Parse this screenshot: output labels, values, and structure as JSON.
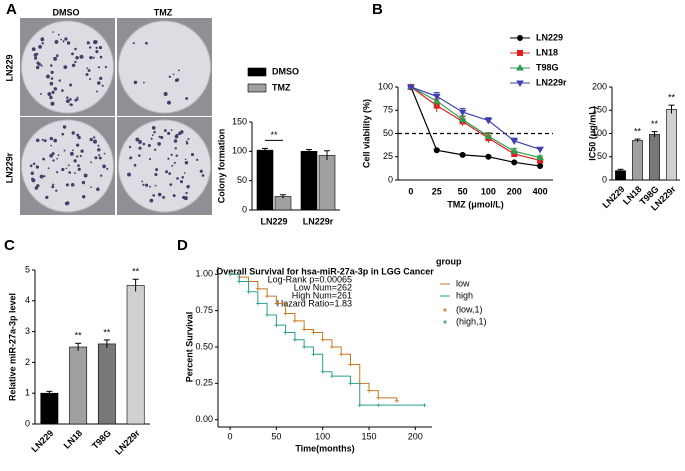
{
  "panel_labels": [
    "A",
    "B",
    "C",
    "D"
  ],
  "plates": {
    "columns": [
      "DMSO",
      "TMZ"
    ],
    "rows": [
      "LN229",
      "LN229r"
    ]
  },
  "chart_data": [
    {
      "type": "bar",
      "y_label": "Colony formation",
      "categories": [
        "LN229",
        "LN229r"
      ],
      "series": [
        {
          "name": "DMSO",
          "color": "#000000",
          "values": [
            102,
            100
          ],
          "errors": [
            3,
            3
          ]
        },
        {
          "name": "TMZ",
          "color": "#a0a0a0",
          "values": [
            23,
            93
          ],
          "errors": [
            3,
            8
          ]
        }
      ],
      "annotation": "**",
      "ylim": [
        0,
        150
      ],
      "yticks": [
        0,
        50,
        100,
        150
      ]
    },
    {
      "type": "line",
      "y_label": "Cell viability (%)",
      "x_label": "TMZ (μmol/L)",
      "categories": [
        "0",
        "25",
        "50",
        "100",
        "200",
        "400"
      ],
      "series": [
        {
          "name": "LN229",
          "color": "#000000",
          "marker": "circle",
          "values": [
            100,
            32,
            27,
            25,
            19,
            15
          ],
          "errors": [
            0,
            1,
            1,
            1,
            1,
            1
          ]
        },
        {
          "name": "LN18",
          "color": "#e02020",
          "marker": "square",
          "values": [
            100,
            80,
            63,
            45,
            28,
            21
          ],
          "errors": [
            0,
            7,
            5,
            5,
            3,
            3
          ]
        },
        {
          "name": "T98G",
          "color": "#2e9e4e",
          "marker": "triangle",
          "values": [
            100,
            85,
            65,
            47,
            31,
            24
          ],
          "errors": [
            0,
            6,
            4,
            4,
            3,
            2
          ]
        },
        {
          "name": "LN229r",
          "color": "#4040b0",
          "marker": "triangle-down",
          "values": [
            100,
            90,
            73,
            64,
            42,
            33
          ],
          "errors": [
            0,
            4,
            4,
            3,
            3,
            2
          ]
        }
      ],
      "reference_line": 50,
      "ylim": [
        0,
        100
      ],
      "yticks": [
        0,
        25,
        50,
        75,
        100
      ]
    },
    {
      "type": "bar",
      "y_label": "IC50 (μg/mL)",
      "categories": [
        "LN229",
        "LN18",
        "T98G",
        "LN229r"
      ],
      "values": [
        20,
        85,
        98,
        152
      ],
      "errors": [
        3,
        3,
        6,
        9
      ],
      "colors": [
        "#000000",
        "#a0a0a0",
        "#787878",
        "#d0d0d0"
      ],
      "significance": [
        null,
        "**",
        "**",
        "**"
      ],
      "ylim": [
        0,
        200
      ],
      "yticks": [
        0,
        50,
        100,
        150,
        200
      ]
    },
    {
      "type": "bar",
      "y_label": "Relative miR-27a-3p level",
      "categories": [
        "LN229",
        "LN18",
        "T98G",
        "LN229r"
      ],
      "values": [
        1.0,
        2.5,
        2.6,
        4.5
      ],
      "errors": [
        0.06,
        0.12,
        0.13,
        0.2
      ],
      "colors": [
        "#000000",
        "#a0a0a0",
        "#787878",
        "#d0d0d0"
      ],
      "significance": [
        null,
        "**",
        "**",
        "**"
      ],
      "ylim": [
        0,
        5
      ],
      "yticks": [
        0,
        1,
        2,
        3,
        4,
        5
      ]
    },
    {
      "type": "step",
      "y_label": "Percent Survival",
      "x_label": "Time(months)",
      "annotations": [
        "Overall Survival for hsa-miR-27a-3p in LGG Cancer",
        "Log-Rank p=0.00065",
        "Low Num=262",
        "High Num=261",
        "Hazard Ratio=1.83"
      ],
      "legend_title": "group",
      "censor_legend": [
        "(low,1)",
        "(high,1)"
      ],
      "series": [
        {
          "name": "low",
          "color": "#c8781e",
          "x": [
            0,
            10,
            20,
            30,
            40,
            50,
            60,
            70,
            80,
            90,
            100,
            110,
            120,
            130,
            140,
            150,
            160,
            180
          ],
          "values": [
            1,
            0.98,
            0.95,
            0.9,
            0.85,
            0.8,
            0.73,
            0.68,
            0.62,
            0.6,
            0.55,
            0.5,
            0.45,
            0.38,
            0.25,
            0.2,
            0.15,
            0.13
          ]
        },
        {
          "name": "high",
          "color": "#2a9d8f",
          "x": [
            0,
            10,
            20,
            30,
            40,
            50,
            60,
            70,
            80,
            90,
            100,
            110,
            130,
            140,
            160,
            210
          ],
          "values": [
            1,
            0.95,
            0.88,
            0.8,
            0.72,
            0.65,
            0.6,
            0.55,
            0.5,
            0.45,
            0.33,
            0.3,
            0.25,
            0.1,
            0.1,
            0.1
          ]
        }
      ],
      "xlim": [
        -13,
        218
      ],
      "xticks": [
        0,
        50,
        100,
        150,
        200
      ],
      "ylim": [
        -0.05,
        1.05
      ],
      "yticks": [
        {
          "value": 0,
          "label": "0.00"
        },
        0.25,
        {
          "value": 0.5,
          "label": "0.50"
        },
        0.75,
        {
          "value": 1,
          "label": "1.00"
        }
      ]
    }
  ]
}
